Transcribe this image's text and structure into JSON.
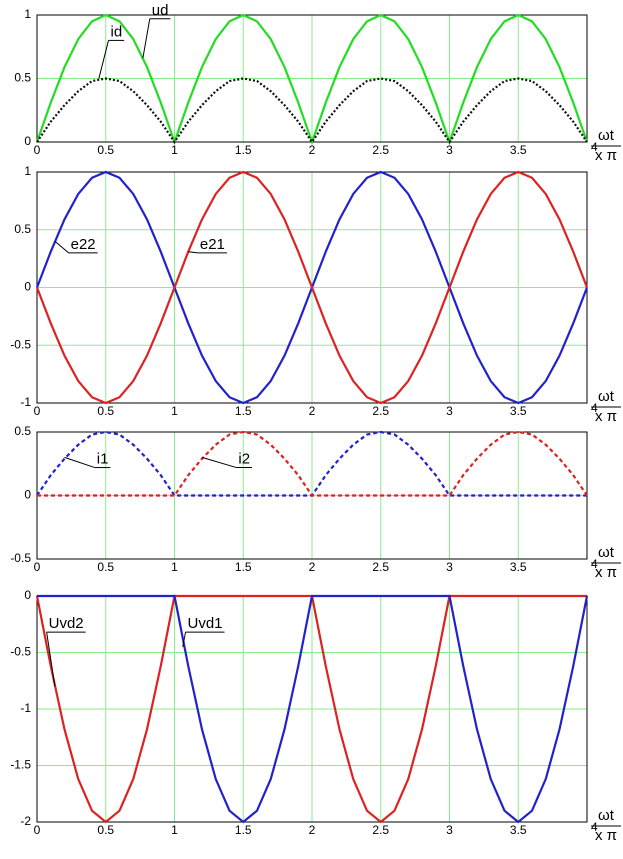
{
  "chart_data": [
    {
      "type": "line",
      "x_label_num": "ωt",
      "x_label_den": "x π",
      "x": [
        0,
        0.1,
        0.2,
        0.3,
        0.4,
        0.5,
        0.6,
        0.7,
        0.8,
        0.9,
        1,
        1.1,
        1.2,
        1.3,
        1.4,
        1.5,
        1.6,
        1.7,
        1.8,
        1.9,
        2,
        2.1,
        2.2,
        2.3,
        2.4,
        2.5,
        2.6,
        2.7,
        2.8,
        2.9,
        3,
        3.1,
        3.2,
        3.3,
        3.4,
        3.5,
        3.6,
        3.7,
        3.8,
        3.9,
        4
      ],
      "series": [
        {
          "name": "ud",
          "color": "#22dd22",
          "style": "solid",
          "values": [
            0,
            0.31,
            0.59,
            0.81,
            0.95,
            1,
            0.95,
            0.81,
            0.59,
            0.31,
            0,
            0.31,
            0.59,
            0.81,
            0.95,
            1,
            0.95,
            0.81,
            0.59,
            0.31,
            0,
            0.31,
            0.59,
            0.81,
            0.95,
            1,
            0.95,
            0.81,
            0.59,
            0.31,
            0,
            0.31,
            0.59,
            0.81,
            0.95,
            1,
            0.95,
            0.81,
            0.59,
            0.31,
            0
          ]
        },
        {
          "name": "id",
          "color": "#111111",
          "style": "dotted",
          "values": [
            0,
            0.16,
            0.29,
            0.4,
            0.48,
            0.5,
            0.48,
            0.4,
            0.29,
            0.16,
            0,
            0.16,
            0.29,
            0.4,
            0.48,
            0.5,
            0.48,
            0.4,
            0.29,
            0.16,
            0,
            0.16,
            0.29,
            0.4,
            0.48,
            0.5,
            0.48,
            0.4,
            0.29,
            0.16,
            0,
            0.16,
            0.29,
            0.4,
            0.48,
            0.5,
            0.48,
            0.4,
            0.29,
            0.16,
            0
          ]
        }
      ],
      "xlim": [
        0,
        4
      ],
      "xticks": [
        0,
        0.5,
        1,
        1.5,
        2,
        2.5,
        3,
        3.5,
        4
      ],
      "ylim": [
        0,
        1
      ],
      "yticks": [
        0,
        0.5,
        1
      ],
      "grid": true
    },
    {
      "type": "line",
      "x_label_num": "ωt",
      "x_label_den": "x π",
      "x": [
        0,
        0.1,
        0.2,
        0.3,
        0.4,
        0.5,
        0.6,
        0.7,
        0.8,
        0.9,
        1,
        1.1,
        1.2,
        1.3,
        1.4,
        1.5,
        1.6,
        1.7,
        1.8,
        1.9,
        2,
        2.1,
        2.2,
        2.3,
        2.4,
        2.5,
        2.6,
        2.7,
        2.8,
        2.9,
        3,
        3.1,
        3.2,
        3.3,
        3.4,
        3.5,
        3.6,
        3.7,
        3.8,
        3.9,
        4
      ],
      "series": [
        {
          "name": "e22",
          "color": "#2222cc",
          "style": "solid",
          "values": [
            0,
            0.31,
            0.59,
            0.81,
            0.95,
            1,
            0.95,
            0.81,
            0.59,
            0.31,
            0,
            -0.31,
            -0.59,
            -0.81,
            -0.95,
            -1,
            -0.95,
            -0.81,
            -0.59,
            -0.31,
            0,
            0.31,
            0.59,
            0.81,
            0.95,
            1,
            0.95,
            0.81,
            0.59,
            0.31,
            0,
            -0.31,
            -0.59,
            -0.81,
            -0.95,
            -1,
            -0.95,
            -0.81,
            -0.59,
            -0.31,
            0
          ]
        },
        {
          "name": "e21",
          "color": "#dd2222",
          "style": "solid",
          "values": [
            0,
            -0.31,
            -0.59,
            -0.81,
            -0.95,
            -1,
            -0.95,
            -0.81,
            -0.59,
            -0.31,
            0,
            0.31,
            0.59,
            0.81,
            0.95,
            1,
            0.95,
            0.81,
            0.59,
            0.31,
            0,
            -0.31,
            -0.59,
            -0.81,
            -0.95,
            -1,
            -0.95,
            -0.81,
            -0.59,
            -0.31,
            0,
            0.31,
            0.59,
            0.81,
            0.95,
            1,
            0.95,
            0.81,
            0.59,
            0.31,
            0
          ]
        }
      ],
      "xlim": [
        0,
        4
      ],
      "xticks": [
        0,
        0.5,
        1,
        1.5,
        2,
        2.5,
        3,
        3.5,
        4
      ],
      "ylim": [
        -1,
        1
      ],
      "yticks": [
        -1,
        -0.5,
        0,
        0.5,
        1
      ],
      "grid": true
    },
    {
      "type": "line",
      "x_label_num": "ωt",
      "x_label_den": "x π",
      "x": [
        0,
        0.1,
        0.2,
        0.3,
        0.4,
        0.5,
        0.6,
        0.7,
        0.8,
        0.9,
        1,
        1.1,
        1.2,
        1.3,
        1.4,
        1.5,
        1.6,
        1.7,
        1.8,
        1.9,
        2,
        2.1,
        2.2,
        2.3,
        2.4,
        2.5,
        2.6,
        2.7,
        2.8,
        2.9,
        3,
        3.1,
        3.2,
        3.3,
        3.4,
        3.5,
        3.6,
        3.7,
        3.8,
        3.9,
        4
      ],
      "series": [
        {
          "name": "i1",
          "color": "#2222cc",
          "style": "dashed",
          "values": [
            0,
            0.16,
            0.29,
            0.4,
            0.48,
            0.5,
            0.48,
            0.4,
            0.29,
            0.16,
            0,
            0,
            0,
            0,
            0,
            0,
            0,
            0,
            0,
            0,
            0,
            0.16,
            0.29,
            0.4,
            0.48,
            0.5,
            0.48,
            0.4,
            0.29,
            0.16,
            0,
            0,
            0,
            0,
            0,
            0,
            0,
            0,
            0,
            0,
            0
          ]
        },
        {
          "name": "i2",
          "color": "#dd2222",
          "style": "dashed",
          "values": [
            0,
            0,
            0,
            0,
            0,
            0,
            0,
            0,
            0,
            0,
            0,
            0.16,
            0.29,
            0.4,
            0.48,
            0.5,
            0.48,
            0.4,
            0.29,
            0.16,
            0,
            0,
            0,
            0,
            0,
            0,
            0,
            0,
            0,
            0,
            0,
            0.16,
            0.29,
            0.4,
            0.48,
            0.5,
            0.48,
            0.4,
            0.29,
            0.16,
            0
          ]
        }
      ],
      "xlim": [
        0,
        4
      ],
      "xticks": [
        0,
        0.5,
        1,
        1.5,
        2,
        2.5,
        3,
        3.5,
        4
      ],
      "ylim": [
        -0.5,
        0.5
      ],
      "yticks": [
        -0.5,
        0,
        0.5
      ],
      "grid": true
    },
    {
      "type": "line",
      "x_label_num": "ωt",
      "x_label_den": "x π",
      "x": [
        0,
        0.1,
        0.2,
        0.3,
        0.4,
        0.5,
        0.6,
        0.7,
        0.8,
        0.9,
        1,
        1.1,
        1.2,
        1.3,
        1.4,
        1.5,
        1.6,
        1.7,
        1.8,
        1.9,
        2,
        2.1,
        2.2,
        2.3,
        2.4,
        2.5,
        2.6,
        2.7,
        2.8,
        2.9,
        3,
        3.1,
        3.2,
        3.3,
        3.4,
        3.5,
        3.6,
        3.7,
        3.8,
        3.9,
        4
      ],
      "series": [
        {
          "name": "Uvd2",
          "color": "#dd2222",
          "style": "solid",
          "values": [
            0,
            -0.62,
            -1.18,
            -1.62,
            -1.9,
            -2,
            -1.9,
            -1.62,
            -1.18,
            -0.62,
            0,
            0,
            0,
            0,
            0,
            0,
            0,
            0,
            0,
            0,
            0,
            -0.62,
            -1.18,
            -1.62,
            -1.9,
            -2,
            -1.9,
            -1.62,
            -1.18,
            -0.62,
            0,
            0,
            0,
            0,
            0,
            0,
            0,
            0,
            0,
            0,
            0
          ]
        },
        {
          "name": "Uvd1",
          "color": "#2222cc",
          "style": "solid",
          "values": [
            0,
            0,
            0,
            0,
            0,
            0,
            0,
            0,
            0,
            0,
            0,
            -0.62,
            -1.18,
            -1.62,
            -1.9,
            -2,
            -1.9,
            -1.62,
            -1.18,
            -0.62,
            0,
            0,
            0,
            0,
            0,
            0,
            0,
            0,
            0,
            0,
            0,
            -0.62,
            -1.18,
            -1.62,
            -1.9,
            -2,
            -1.9,
            -1.62,
            -1.18,
            -0.62,
            0
          ]
        }
      ],
      "xlim": [
        0,
        4
      ],
      "xticks": [
        0,
        0.5,
        1,
        1.5,
        2,
        2.5,
        3,
        3.5,
        4
      ],
      "ylim": [
        -2,
        0
      ],
      "yticks": [
        -2,
        -1.5,
        -1,
        -0.5,
        0
      ],
      "grid": true
    }
  ]
}
